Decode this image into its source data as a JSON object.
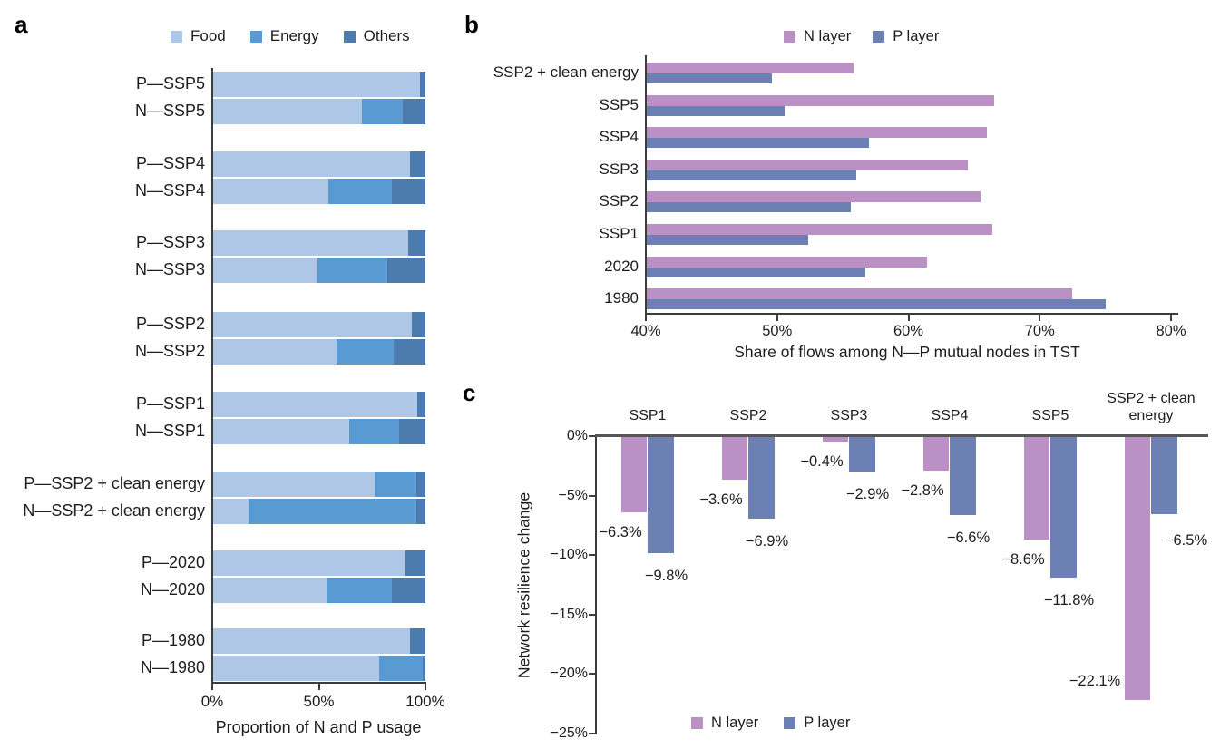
{
  "panels": {
    "a": "a",
    "b": "b",
    "c": "c"
  },
  "colors": {
    "food": "#aec7e6",
    "energy": "#5a9ad2",
    "others": "#4b7cad",
    "n_layer": "#bb90c4",
    "p_layer": "#6d80b4",
    "axis": "#3c3c3c",
    "baseline": "#565656"
  },
  "chart_data": [
    {
      "id": "a",
      "type": "bar",
      "orientation": "horizontal",
      "stacked": true,
      "legend_position": "top",
      "categories": [
        "P—SSP5",
        "N—SSP5",
        "P—SSP4",
        "N—SSP4",
        "P—SSP3",
        "N—SSP3",
        "P—SSP2",
        "N—SSP2",
        "P—SSP1",
        "N—SSP1",
        "P—SSP2 + clean energy",
        "N—SSP2 + clean energy",
        "P—2020",
        "N—2020",
        "P—1980",
        "N—1980"
      ],
      "series": [
        {
          "name": "Food",
          "color_key": "food",
          "values": [
            97.5,
            70.3,
            92.7,
            54.5,
            91.9,
            49.2,
            93.8,
            58.4,
            96.2,
            64.4,
            76.1,
            17.0,
            90.5,
            53.8,
            92.9,
            78.5
          ]
        },
        {
          "name": "Energy",
          "color_key": "energy",
          "values": [
            0.0,
            19.2,
            0.0,
            29.7,
            0.0,
            32.8,
            0.0,
            26.9,
            0.0,
            23.3,
            19.8,
            78.9,
            0.0,
            30.4,
            0.0,
            20.2
          ]
        },
        {
          "name": "Others",
          "color_key": "others",
          "values": [
            2.5,
            10.5,
            7.3,
            15.8,
            8.1,
            18.0,
            6.2,
            14.7,
            3.8,
            12.3,
            4.1,
            4.1,
            9.5,
            15.8,
            7.1,
            1.3
          ]
        }
      ],
      "x_ticks": [
        "0%",
        "50%",
        "100%"
      ],
      "x_tick_values": [
        0,
        50,
        100
      ],
      "xlim": [
        0,
        100
      ],
      "xlabel": "Proportion of N and P usage",
      "grid": false
    },
    {
      "id": "b",
      "type": "bar",
      "orientation": "horizontal",
      "grouped": true,
      "legend_position": "top",
      "categories": [
        "SSP2 + clean energy",
        "SSP5",
        "SSP4",
        "SSP3",
        "SSP2",
        "SSP1",
        "2020",
        "1980"
      ],
      "series": [
        {
          "name": "N layer",
          "color_key": "n_layer",
          "values": [
            55.8,
            66.5,
            66.0,
            64.5,
            65.5,
            66.4,
            61.4,
            72.5
          ]
        },
        {
          "name": "P layer",
          "color_key": "p_layer",
          "values": [
            49.6,
            50.6,
            57.0,
            56.0,
            55.6,
            52.4,
            56.7,
            75.0
          ]
        }
      ],
      "x_ticks": [
        "40%",
        "50%",
        "60%",
        "70%",
        "80%"
      ],
      "x_tick_values": [
        40,
        50,
        60,
        70,
        80
      ],
      "xlim": [
        40,
        80
      ],
      "xlabel": "Share of flows among N—P mutual nodes in TST",
      "grid": false
    },
    {
      "id": "c",
      "type": "bar",
      "orientation": "vertical",
      "grouped": true,
      "legend_position": "bottom",
      "categories": [
        "SSP1",
        "SSP2",
        "SSP3",
        "SSP4",
        "SSP5",
        "SSP2 + clean energy"
      ],
      "series": [
        {
          "name": "N layer",
          "color_key": "n_layer",
          "values": [
            -6.3,
            -3.6,
            -0.4,
            -2.8,
            -8.6,
            -22.1
          ]
        },
        {
          "name": "P layer",
          "color_key": "p_layer",
          "values": [
            -9.8,
            -6.9,
            -2.9,
            -6.6,
            -11.8,
            -6.5
          ]
        }
      ],
      "value_labels": {
        "n": [
          "−6.3%",
          "−3.6%",
          "−0.4%",
          "−2.8%",
          "−8.6%",
          "−22.1%"
        ],
        "p": [
          "−9.8%",
          "−6.9%",
          "−2.9%",
          "−6.6%",
          "−11.8%",
          "−6.5%"
        ]
      },
      "y_ticks": [
        "0%",
        "−5%",
        "−10%",
        "−15%",
        "−20%",
        "−25%"
      ],
      "y_tick_values": [
        0,
        -5,
        -10,
        -15,
        -20,
        -25
      ],
      "ylim": [
        -25,
        0
      ],
      "ylabel": "Network resilience change",
      "grid": false
    }
  ]
}
